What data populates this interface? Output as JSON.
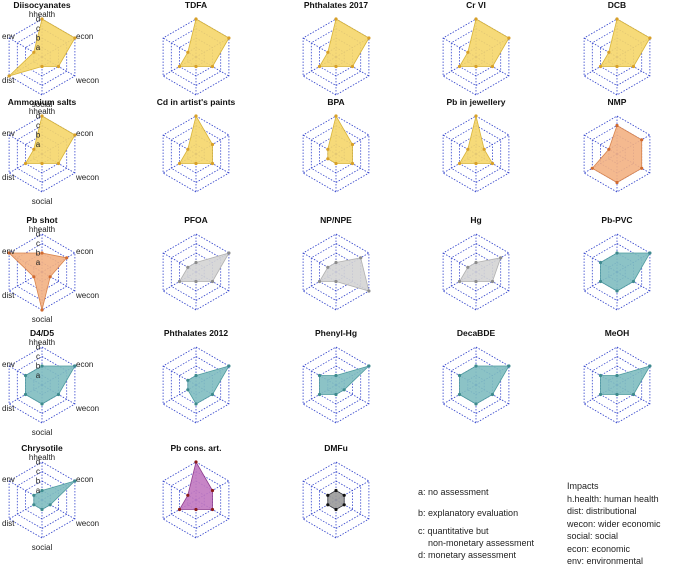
{
  "chart_data": {
    "type": "radar",
    "axes": [
      "hhealth",
      "econ",
      "wecon",
      "social",
      "dist",
      "env"
    ],
    "scale_levels": [
      "a",
      "b",
      "c",
      "d"
    ],
    "scale_min": 0,
    "scale_max": 4,
    "colors": {
      "yellow": {
        "fill": "#F5D66A",
        "stroke": "#D8B43A",
        "point": "#D8A028"
      },
      "orange": {
        "fill": "#F3B183",
        "stroke": "#D8844E",
        "point": "#D06A30"
      },
      "grey": {
        "fill": "#D4D4D4",
        "stroke": "#B0B0B0",
        "point": "#8C8C8C"
      },
      "teal": {
        "fill": "#7FBDC0",
        "stroke": "#4E9A9E",
        "point": "#3E8A8E"
      },
      "purple": {
        "fill": "#C178C0",
        "stroke": "#8E3E8E",
        "point": "#8B1A1A"
      },
      "dark": {
        "fill": "#9A9A9A",
        "stroke": "#3A3A3A",
        "point": "#111111"
      },
      "grid": "#3344CC"
    },
    "charts": [
      {
        "title": "Diisocyanates",
        "color": "yellow",
        "labeled": true,
        "values": [
          4,
          4,
          2,
          1,
          4,
          1
        ]
      },
      {
        "title": "TDFA",
        "color": "yellow",
        "labeled": false,
        "values": [
          4,
          4,
          2,
          1,
          2,
          1
        ]
      },
      {
        "title": "Phthalates 2017",
        "color": "yellow",
        "labeled": false,
        "values": [
          4,
          4,
          2,
          1,
          2,
          1
        ]
      },
      {
        "title": "Cr VI",
        "color": "yellow",
        "labeled": false,
        "values": [
          4,
          4,
          2,
          1,
          2,
          1
        ]
      },
      {
        "title": "DCB",
        "color": "yellow",
        "labeled": false,
        "values": [
          4,
          4,
          2,
          1,
          2,
          1
        ]
      },
      {
        "title": "Ammonium salts",
        "color": "yellow",
        "labeled": true,
        "values": [
          4,
          4,
          2,
          1,
          2,
          1
        ]
      },
      {
        "title": "Cd in artist's paints",
        "color": "yellow",
        "labeled": false,
        "values": [
          4,
          2,
          2,
          1,
          2,
          1
        ]
      },
      {
        "title": "BPA",
        "color": "yellow",
        "labeled": false,
        "values": [
          4,
          2,
          2,
          1,
          1,
          1
        ]
      },
      {
        "title": "Pb in jewellery",
        "color": "yellow",
        "labeled": false,
        "values": [
          4,
          1,
          2,
          1,
          2,
          1
        ]
      },
      {
        "title": "NMP",
        "color": "orange",
        "labeled": false,
        "values": [
          3,
          3,
          3,
          3,
          3,
          1
        ]
      },
      {
        "title": "Pb shot",
        "color": "orange",
        "labeled": true,
        "values": [
          2,
          3,
          1,
          4,
          1,
          4
        ]
      },
      {
        "title": "PFOA",
        "color": "grey",
        "labeled": false,
        "values": [
          1,
          4,
          2,
          1,
          2,
          1
        ]
      },
      {
        "title": "NP/NPE",
        "color": "grey",
        "labeled": false,
        "values": [
          1,
          3,
          4,
          1,
          2,
          1
        ]
      },
      {
        "title": "Hg",
        "color": "grey",
        "labeled": false,
        "values": [
          1,
          3,
          2,
          1,
          2,
          1
        ]
      },
      {
        "title": "Pb-PVC",
        "color": "teal",
        "labeled": false,
        "values": [
          2,
          4,
          2,
          2,
          2,
          2
        ]
      },
      {
        "title": "D4/D5",
        "color": "teal",
        "labeled": true,
        "values": [
          2,
          4,
          2,
          2,
          2,
          2
        ]
      },
      {
        "title": "Phthalates 2012",
        "color": "teal",
        "labeled": false,
        "values": [
          1,
          4,
          2,
          2,
          1,
          1
        ]
      },
      {
        "title": "Phenyl-Hg",
        "color": "teal",
        "labeled": false,
        "values": [
          1,
          4,
          1,
          1,
          2,
          2
        ]
      },
      {
        "title": "DecaBDE",
        "color": "teal",
        "labeled": false,
        "values": [
          2,
          4,
          2,
          2,
          2,
          2
        ]
      },
      {
        "title": "MeOH",
        "color": "teal",
        "labeled": false,
        "values": [
          1,
          4,
          2,
          1,
          2,
          2
        ]
      },
      {
        "title": "Chrysotile",
        "color": "teal",
        "labeled": true,
        "values": [
          1,
          4,
          1,
          1,
          1,
          1
        ]
      },
      {
        "title": "Pb cons. art.",
        "color": "purple",
        "labeled": false,
        "values": [
          4,
          2,
          2,
          1,
          2,
          1
        ]
      },
      {
        "title": "DMFu",
        "color": "dark",
        "labeled": false,
        "values": [
          1,
          1,
          1,
          1,
          1,
          1
        ]
      }
    ]
  },
  "legend": {
    "levels": [
      "a: no assessment",
      "b: explanatory evaluation",
      "c: quantitative but",
      "    non-monetary assessment",
      "d: monetary assessment"
    ],
    "impacts_title": "Impacts",
    "impacts": [
      "h.health: human health",
      "dist: distributional",
      "wecon: wider economic",
      "social: social",
      "econ: economic",
      "env: environmental"
    ]
  }
}
